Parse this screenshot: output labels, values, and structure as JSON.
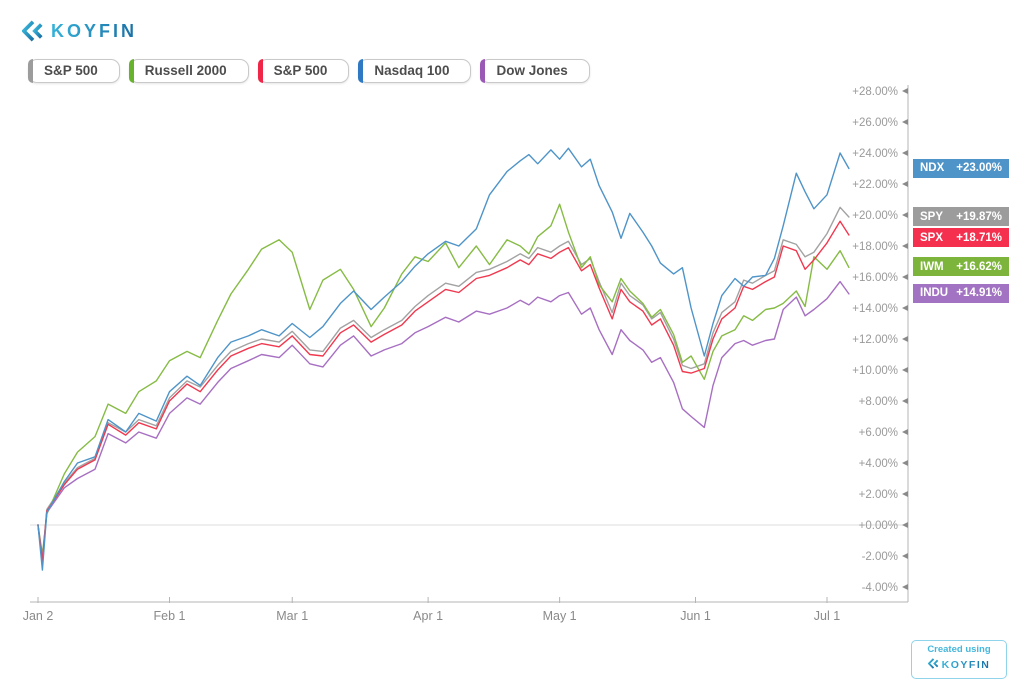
{
  "logo": {
    "text": "KOYFIN",
    "icon": "koyfin-chevrons-icon"
  },
  "legend": [
    {
      "label": "S&P 500",
      "color": "#9c9c9c"
    },
    {
      "label": "Russell 2000",
      "color": "#67b32e"
    },
    {
      "label": "S&P 500",
      "color": "#ef2647"
    },
    {
      "label": "Nasdaq 100",
      "color": "#2f79c4"
    },
    {
      "label": "Dow Jones",
      "color": "#9b59b6"
    }
  ],
  "chart_data": {
    "type": "line",
    "title": "",
    "x_unit": "day-of-year",
    "x_domain": [
      2,
      182
    ],
    "x_ticks": [
      {
        "v": 2,
        "label": "Jan 2"
      },
      {
        "v": 32,
        "label": "Feb 1"
      },
      {
        "v": 60,
        "label": "Mar 1"
      },
      {
        "v": 91,
        "label": "Apr 1"
      },
      {
        "v": 121,
        "label": "May 1"
      },
      {
        "v": 152,
        "label": "Jun 1"
      },
      {
        "v": 182,
        "label": "Jul 1"
      }
    ],
    "y_axis": {
      "min": -4,
      "max": 28,
      "step": 2,
      "format": "signed-percent-2dp",
      "side": "right"
    },
    "zero_line": true,
    "legend_position": "top-left-chips",
    "x": [
      2,
      3,
      4,
      8,
      11,
      15,
      18,
      22,
      25,
      29,
      32,
      36,
      39,
      43,
      46,
      50,
      53,
      57,
      60,
      64,
      67,
      71,
      74,
      78,
      81,
      85,
      88,
      91,
      95,
      98,
      102,
      105,
      109,
      112,
      114,
      116,
      119,
      121,
      123,
      126,
      128,
      130,
      133,
      135,
      137,
      140,
      142,
      144,
      147,
      149,
      151,
      154,
      156,
      158,
      161,
      163,
      165,
      168,
      170,
      172,
      175,
      177,
      179,
      182,
      185,
      187
    ],
    "series": [
      {
        "name": "S&P 500",
        "ticker": "SPY",
        "change_label": "+19.87%",
        "last_value": 19.87,
        "color": "#a2a2a2",
        "badge_color": "#9c9c9c",
        "values": [
          0,
          -2.3,
          1,
          2.7,
          3.7,
          4.3,
          6.6,
          6,
          6.8,
          6.4,
          8.2,
          9.3,
          8.9,
          10.3,
          11.2,
          11.7,
          12,
          11.8,
          12.5,
          11.3,
          11.2,
          12.7,
          13.2,
          12.1,
          12.6,
          13.2,
          14.1,
          14.8,
          15.6,
          15.4,
          16.3,
          16.5,
          17,
          17.5,
          17.2,
          17.9,
          17.6,
          18,
          18.3,
          16.8,
          17.2,
          15.7,
          13.7,
          15.6,
          14.8,
          14.2,
          13.3,
          13.7,
          12,
          10.3,
          10.1,
          10.4,
          12.4,
          13.7,
          14.4,
          15.8,
          15.6,
          16.1,
          16.4,
          18.4,
          18.1,
          17.3,
          17.6,
          18.8,
          20.5,
          19.87
        ]
      },
      {
        "name": "Russell 2000",
        "ticker": "IWM",
        "change_label": "+16.62%",
        "last_value": 16.62,
        "color": "#86bb44",
        "badge_color": "#7db53c",
        "values": [
          0,
          -1.9,
          0.7,
          3.3,
          4.7,
          5.7,
          7.8,
          7.2,
          8.6,
          9.3,
          10.6,
          11.2,
          10.8,
          13.2,
          14.9,
          16.5,
          17.8,
          18.4,
          17.6,
          13.9,
          15.8,
          16.5,
          15.2,
          12.8,
          14,
          16.2,
          17.3,
          17,
          18.2,
          16.6,
          18,
          16.8,
          18.4,
          18,
          17.5,
          18.6,
          19.3,
          20.7,
          18.9,
          16.6,
          17.3,
          15.5,
          14.4,
          15.9,
          15.1,
          14.3,
          13.4,
          13.9,
          12.3,
          10.5,
          10.9,
          9.4,
          11.2,
          12.2,
          12.6,
          13.5,
          13.2,
          13.9,
          14,
          14.3,
          15.1,
          14.1,
          17.3,
          16.5,
          17.7,
          16.62
        ]
      },
      {
        "name": "Dow Jones",
        "ticker": "INDU",
        "change_label": "+14.91%",
        "last_value": 14.91,
        "color": "#a76fc2",
        "badge_color": "#a273c2",
        "values": [
          0,
          -2.2,
          0.8,
          2.4,
          3,
          3.6,
          5.9,
          5.3,
          6,
          5.6,
          7.2,
          8.2,
          7.8,
          9.2,
          10.1,
          10.6,
          11,
          10.8,
          11.6,
          10.4,
          10.2,
          11.6,
          12.2,
          10.9,
          11.3,
          11.7,
          12.4,
          12.8,
          13.4,
          13.1,
          13.8,
          13.6,
          14,
          14.5,
          14.2,
          14.7,
          14.4,
          14.8,
          15,
          13.6,
          14,
          12.6,
          11,
          12.6,
          11.9,
          11.3,
          10.5,
          10.8,
          9.2,
          7.5,
          7,
          6.3,
          9,
          10.8,
          11.7,
          11.9,
          11.6,
          11.9,
          12,
          13.9,
          14.7,
          13.5,
          13.9,
          14.6,
          15.7,
          14.91
        ]
      },
      {
        "name": "S&P 500",
        "ticker": "SPX",
        "change_label": "+18.71%",
        "last_value": 18.71,
        "color": "#f0384f",
        "badge_color": "#f5304e",
        "values": [
          0,
          -2.4,
          0.9,
          2.6,
          3.6,
          4.2,
          6.5,
          5.8,
          6.6,
          6.2,
          8,
          9.1,
          8.6,
          10,
          10.9,
          11.4,
          11.7,
          11.5,
          12.2,
          11,
          10.9,
          12.4,
          12.9,
          11.8,
          12.3,
          12.9,
          13.8,
          14.4,
          15.2,
          15,
          15.9,
          16.1,
          16.6,
          17.1,
          16.8,
          17.5,
          17.2,
          17.6,
          17.9,
          16.4,
          16.8,
          15.3,
          13.3,
          15.2,
          14.4,
          13.8,
          12.9,
          13.3,
          11.6,
          9.9,
          9.8,
          10.1,
          12,
          13.3,
          14,
          15.4,
          15.2,
          15.7,
          16,
          18,
          17.7,
          16.5,
          17.1,
          18.2,
          19.6,
          18.71
        ]
      },
      {
        "name": "Nasdaq 100",
        "ticker": "NDX",
        "change_label": "+23.00%",
        "last_value": 23.0,
        "color": "#4e94c8",
        "badge_color": "#4e94c8",
        "values": [
          0,
          -2.9,
          0.8,
          2.8,
          4,
          4.4,
          6.8,
          6,
          7.2,
          6.7,
          8.6,
          9.6,
          9,
          10.8,
          11.8,
          12.2,
          12.6,
          12.2,
          13,
          12.1,
          12.8,
          14.3,
          15.1,
          13.9,
          14.7,
          15.7,
          16.7,
          17.5,
          18.3,
          18,
          19.1,
          21.3,
          22.8,
          23.5,
          23.9,
          23.3,
          24.2,
          23.6,
          24.3,
          23.1,
          23.6,
          21.9,
          20.2,
          18.5,
          20.1,
          18.9,
          18,
          16.9,
          16.2,
          16.6,
          14,
          10.9,
          13,
          14.8,
          15.9,
          15.4,
          16,
          16.1,
          17.2,
          19.3,
          22.7,
          21.5,
          20.4,
          21.3,
          24,
          23
        ]
      }
    ]
  },
  "footer_badge": {
    "line1": "Created using",
    "logo_text": "KOYFIN"
  }
}
